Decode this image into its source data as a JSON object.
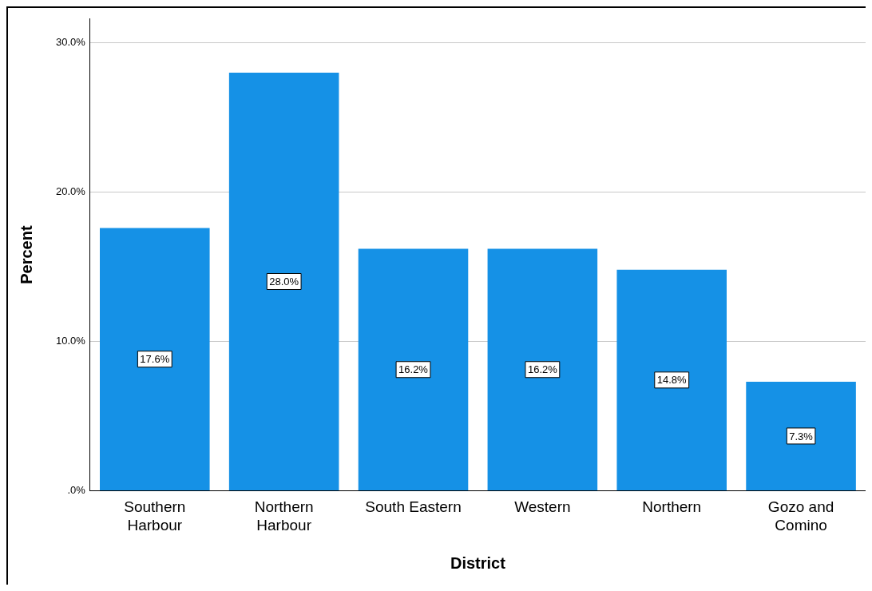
{
  "chart_data": {
    "type": "bar",
    "categories": [
      "Southern Harbour",
      "Northern Harbour",
      "South Eastern",
      "Western",
      "Northern",
      "Gozo and Comino"
    ],
    "values": [
      17.6,
      28.0,
      16.2,
      16.2,
      14.8,
      7.3
    ],
    "value_labels": [
      "17.6%",
      "28.0%",
      "16.2%",
      "16.2%",
      "14.8%",
      "7.3%"
    ],
    "color": "#1591e6",
    "xlabel": "District",
    "ylabel": "Percent",
    "ylim": [
      0,
      31.6
    ],
    "yticks": [
      {
        "value": 0,
        "label": ".0%"
      },
      {
        "value": 10,
        "label": "10.0%"
      },
      {
        "value": 20,
        "label": "20.0%"
      },
      {
        "value": 30,
        "label": "30.0%"
      }
    ],
    "grid": "y",
    "legend": false
  }
}
